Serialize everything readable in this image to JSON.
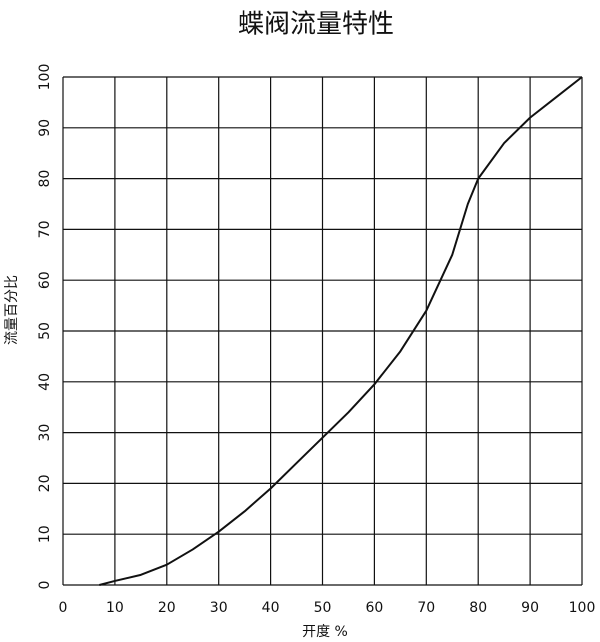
{
  "chart_data": {
    "type": "line",
    "title": "蝶阀流量特性",
    "xlabel": "开度 %",
    "ylabel": "流量百分比",
    "x": [
      7,
      10,
      15,
      20,
      25,
      30,
      35,
      40,
      45,
      50,
      55,
      60,
      65,
      70,
      75,
      78,
      80,
      85,
      90,
      95,
      100
    ],
    "series": [
      {
        "name": "流量特性",
        "color": "#111111",
        "values": [
          0,
          0.8,
          2,
          4,
          7,
          10.5,
          14.5,
          19,
          24,
          29,
          34,
          39.5,
          46,
          54,
          65,
          75,
          80,
          87,
          92,
          96,
          100
        ]
      }
    ],
    "xlim": [
      0,
      100
    ],
    "xticks": [
      0,
      10,
      20,
      30,
      40,
      50,
      60,
      70,
      80,
      90,
      100
    ],
    "ylim": [
      0,
      100
    ],
    "yticks": [
      0,
      10,
      20,
      30,
      40,
      50,
      60,
      70,
      80,
      90,
      100
    ],
    "grid": true
  }
}
